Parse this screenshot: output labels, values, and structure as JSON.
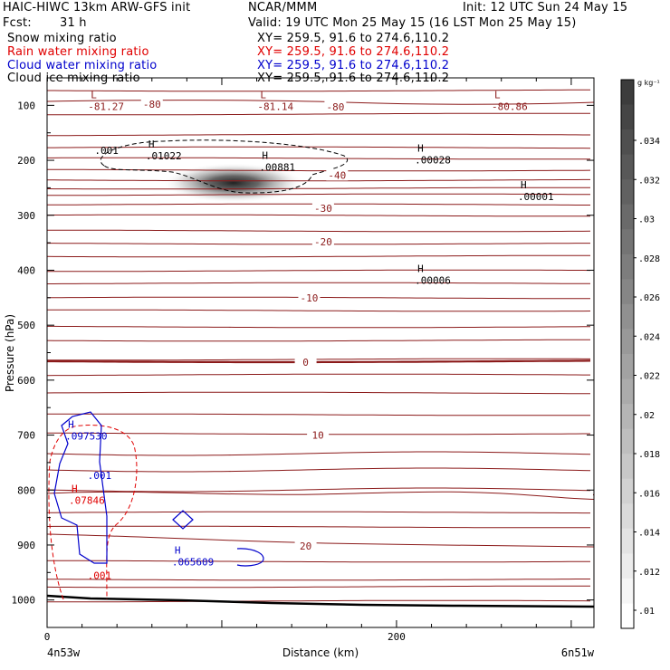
{
  "header": {
    "title": "HAIC-HIWC 13km ARW-GFS init",
    "center": "NCAR/MMM",
    "init": "Init: 12 UTC Sun 24 May 15",
    "fcst_label": "Fcst:",
    "fcst_value": "31 h",
    "valid": "Valid: 19 UTC Mon 25 May 15 (16 LST Mon 25 May 15)"
  },
  "fields": [
    {
      "label": "Snow mixing ratio",
      "xy": "XY= 259.5, 91.6 to 274.6,110.2",
      "color": "#000000"
    },
    {
      "label": "Rain water mixing ratio",
      "xy": "XY= 259.5, 91.6 to 274.6,110.2",
      "color": "#e00000"
    },
    {
      "label": "Cloud water mixing ratio",
      "xy": "XY= 259.5, 91.6 to 274.6,110.2",
      "color": "#0000cc"
    },
    {
      "label": "Cloud ice mixing ratio",
      "xy": "XY= 259.5, 91.6 to 274.6,110.2",
      "color": "#000000"
    }
  ],
  "chart_data": {
    "type": "contour",
    "xlabel": "Distance (km)",
    "ylabel": "Pressure (hPa)",
    "x_range": [
      0,
      313
    ],
    "y_range": [
      1050,
      50
    ],
    "x_ticks": [
      0,
      200
    ],
    "y_ticks": [
      100,
      200,
      300,
      400,
      500,
      600,
      700,
      800,
      900,
      1000
    ],
    "x_endpoints": {
      "left": "4n53w",
      "right": "6n51w"
    },
    "temperature_contours": {
      "color": "#8b1a1a",
      "levels_labeled": [
        {
          "value": "-80",
          "x_km": 60,
          "p": 98
        },
        {
          "value": "-80",
          "x_km": 165,
          "p": 103
        },
        {
          "value": "-40",
          "x_km": 166,
          "p": 227
        },
        {
          "value": "-30",
          "x_km": 158,
          "p": 287
        },
        {
          "value": "-20",
          "x_km": 158,
          "p": 348
        },
        {
          "value": "-10",
          "x_km": 150,
          "p": 450
        },
        {
          "value": "0",
          "x_km": 148,
          "p": 567
        },
        {
          "value": "10",
          "x_km": 155,
          "p": 700
        },
        {
          "value": "20",
          "x_km": 148,
          "p": 902
        }
      ]
    },
    "extrema_labels": [
      {
        "kind": "L",
        "value": "-81.27",
        "x_km": 25,
        "p": 97,
        "color": "#8b1a1a"
      },
      {
        "kind": "L",
        "value": "-81.14",
        "x_km": 122,
        "p": 97,
        "color": "#8b1a1a"
      },
      {
        "kind": "L",
        "value": "-80.86",
        "x_km": 256,
        "p": 97,
        "color": "#8b1a1a"
      },
      {
        "kind": "H",
        "value": ".01022",
        "x_km": 58,
        "p": 187,
        "color": "#000000"
      },
      {
        "kind": "H",
        "value": ".00881",
        "x_km": 123,
        "p": 207,
        "color": "#000000"
      },
      {
        "kind": "H",
        "value": ".00028",
        "x_km": 212,
        "p": 194,
        "color": "#000000"
      },
      {
        "kind": "H",
        "value": ".00001",
        "x_km": 271,
        "p": 261,
        "color": "#000000"
      },
      {
        "kind": "H",
        "value": ".00006",
        "x_km": 212,
        "p": 413,
        "color": "#000000"
      },
      {
        "kind": "H",
        "value": ".097530",
        "x_km": 12,
        "p": 697,
        "color": "#0000cc"
      },
      {
        "kind": "H",
        "value": ".07846",
        "x_km": 14,
        "p": 814,
        "color": "#e00000"
      },
      {
        "kind": "H",
        "value": ".065609",
        "x_km": 73,
        "p": 926,
        "color": "#0000cc"
      }
    ],
    "contour_labels": [
      {
        "value": ".001",
        "x_km": 34,
        "p": 188,
        "color": "#000000"
      },
      {
        "value": ".001",
        "x_km": 30,
        "p": 780,
        "color": "#0000cc"
      },
      {
        "value": ".001",
        "x_km": 30,
        "p": 962,
        "color": "#e00000"
      }
    ],
    "colorbar": {
      "unit": "g kg⁻¹",
      "ticks": [
        ".034",
        ".032",
        ".03",
        ".028",
        ".026",
        ".024",
        ".022",
        ".02",
        ".018",
        ".016",
        ".014",
        ".012",
        ".01"
      ]
    },
    "grid": false
  }
}
